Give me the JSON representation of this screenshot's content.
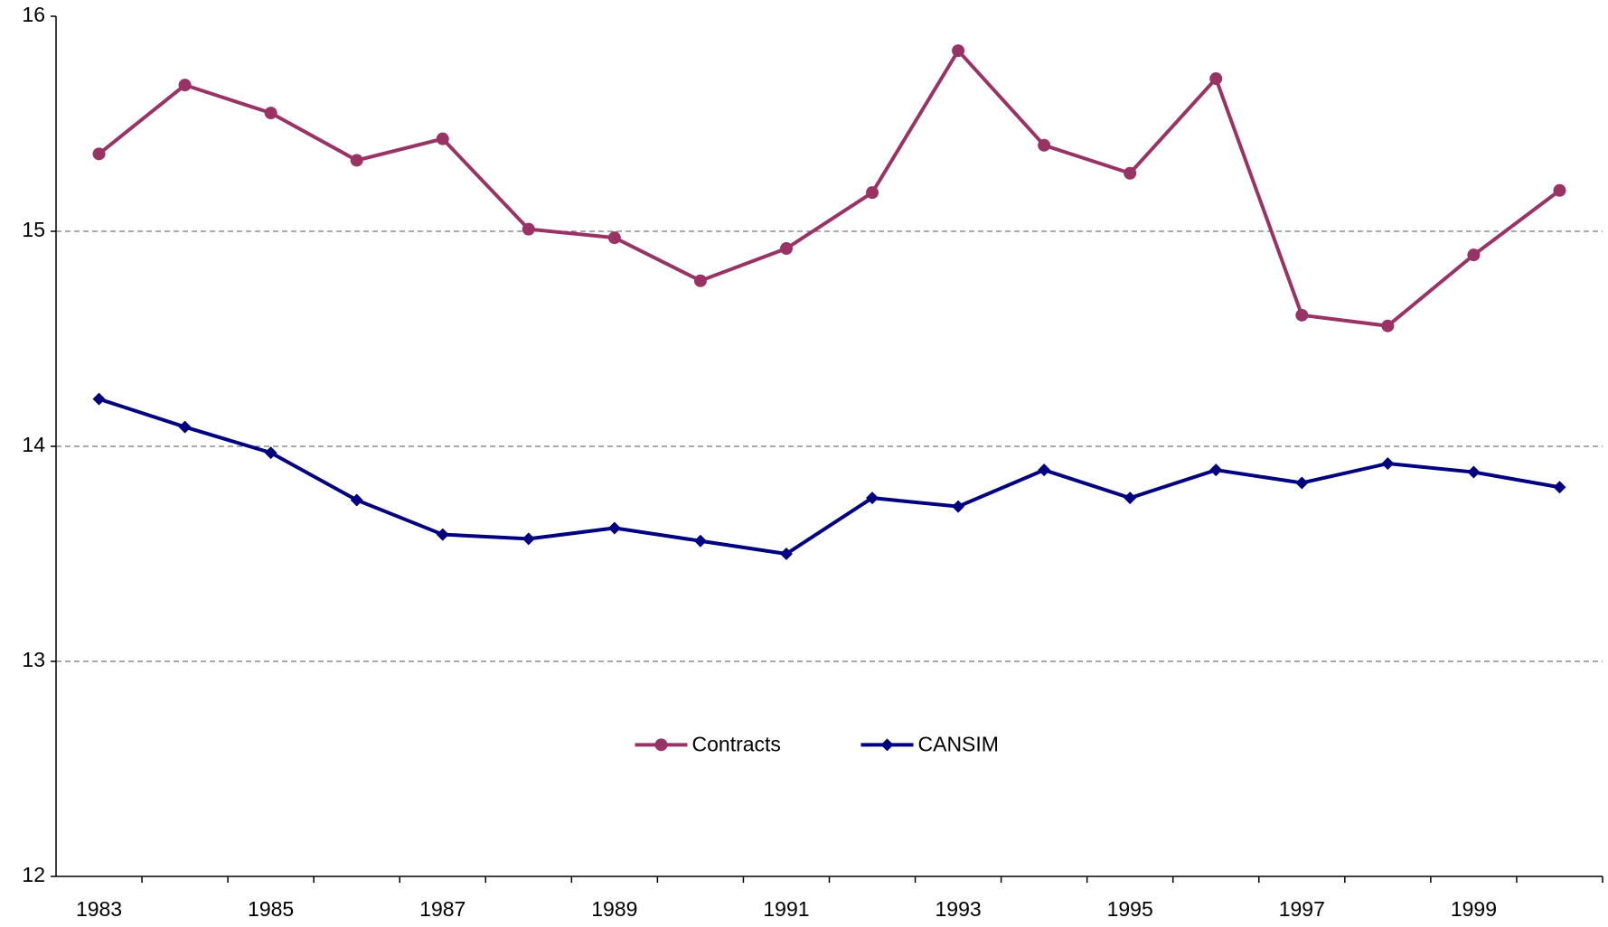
{
  "chart_data": {
    "type": "line",
    "categories": [
      "1983",
      null,
      "1985",
      null,
      "1987",
      null,
      "1989",
      null,
      "1991",
      null,
      "1993",
      null,
      "1995",
      null,
      "1997",
      null,
      "1999",
      null
    ],
    "series": [
      {
        "name": "Contracts",
        "color": "#993366",
        "marker": "circle",
        "values": [
          15.36,
          15.68,
          15.55,
          15.33,
          15.43,
          15.01,
          14.97,
          14.77,
          14.92,
          15.18,
          15.84,
          15.4,
          15.27,
          15.71,
          14.61,
          14.56,
          14.89,
          15.19
        ]
      },
      {
        "name": "CANSIM",
        "color": "#000080",
        "marker": "diamond",
        "values": [
          14.22,
          14.09,
          13.97,
          13.75,
          13.59,
          13.57,
          13.62,
          13.56,
          13.5,
          13.76,
          13.72,
          13.89,
          13.76,
          13.89,
          13.83,
          13.92,
          13.88,
          13.81
        ]
      }
    ],
    "ylim": [
      12,
      16
    ],
    "yticks": [
      12,
      13,
      14,
      15,
      16
    ],
    "grid": true,
    "legend": "center"
  }
}
